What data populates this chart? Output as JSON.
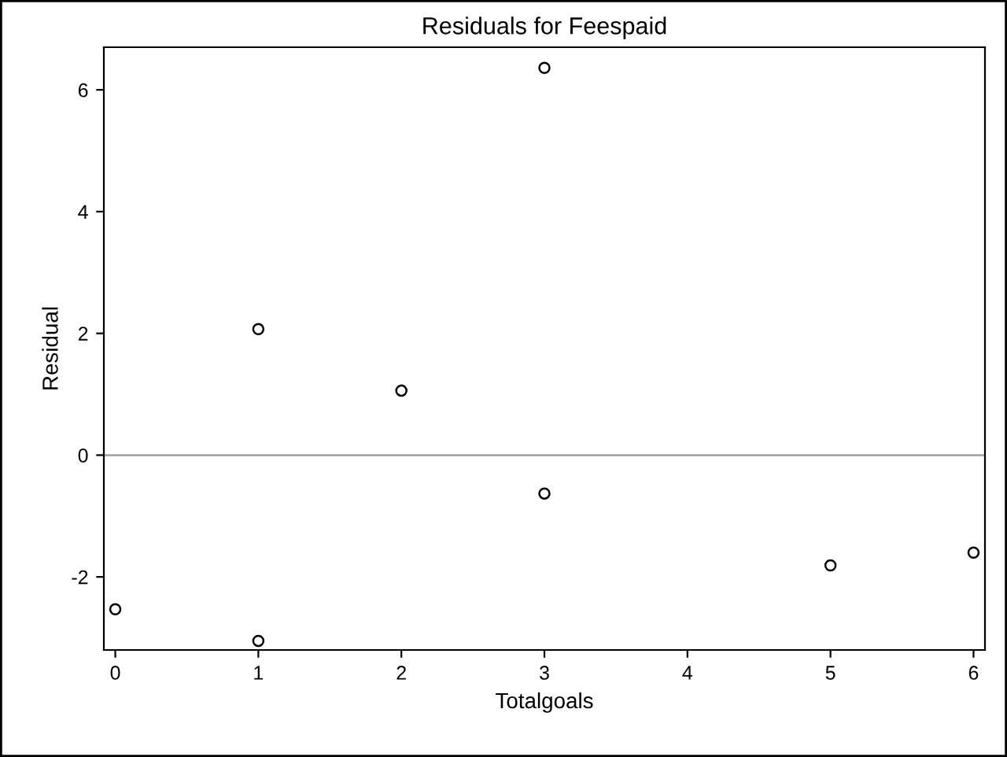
{
  "chart_data": {
    "type": "scatter",
    "title": "Residuals for Feespaid",
    "xlabel": "Totalgoals",
    "ylabel": "Residual",
    "x": [
      0,
      1,
      1,
      2,
      3,
      3,
      5,
      6
    ],
    "values": [
      -2.53,
      2.07,
      -3.05,
      1.06,
      6.36,
      -0.63,
      -1.81,
      -1.6
    ],
    "color": "#000000",
    "marker": "circle",
    "xlim": [
      -0.08,
      6.08
    ],
    "xticks": [
      0,
      1,
      2,
      3,
      4,
      5,
      6
    ],
    "ylim": [
      -3.2,
      6.7
    ],
    "yticks": [
      -2,
      0,
      2,
      4,
      6
    ],
    "ref_lines": [
      {
        "axis": "y",
        "value": 0,
        "color": "#a0a0a0"
      }
    ],
    "grid": false,
    "legend": false
  }
}
